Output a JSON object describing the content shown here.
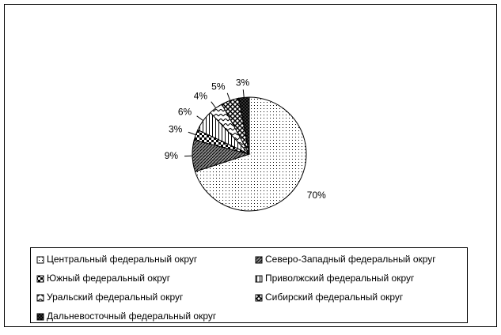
{
  "chart_data": {
    "type": "pie",
    "categories": [
      "Центральный федеральный округ",
      "Северо-Западный федеральный округ",
      "Южный федеральный округ",
      "Приволжский федеральный округ",
      "Уральский федеральный округ",
      "Сибирский федеральный округ",
      "Дальневосточный федеральный округ"
    ],
    "values": [
      70,
      9,
      3,
      6,
      4,
      5,
      3
    ],
    "value_labels": [
      "70%",
      "9%",
      "3%",
      "6%",
      "4%",
      "5%",
      "3%"
    ]
  }
}
